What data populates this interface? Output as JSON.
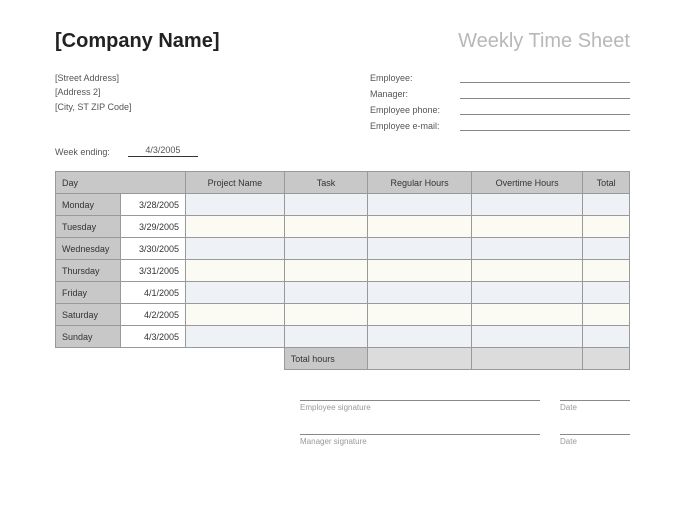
{
  "header": {
    "company_name": "[Company Name]",
    "doc_title": "Weekly Time Sheet"
  },
  "address": {
    "line1": "[Street Address]",
    "line2": "[Address 2]",
    "line3": "[City, ST  ZIP Code]"
  },
  "employee_fields": {
    "employee": "Employee:",
    "manager": "Manager:",
    "phone": "Employee phone:",
    "email": "Employee e-mail:"
  },
  "week_ending": {
    "label": "Week ending:",
    "value": "4/3/2005"
  },
  "table": {
    "type": "table",
    "columns": [
      "Day",
      "Project Name",
      "Task",
      "Regular Hours",
      "Overtime Hours",
      "Total"
    ],
    "rows": [
      {
        "day": "Monday",
        "date": "3/28/2005"
      },
      {
        "day": "Tuesday",
        "date": "3/29/2005"
      },
      {
        "day": "Wednesday",
        "date": "3/30/2005"
      },
      {
        "day": "Thursday",
        "date": "3/31/2005"
      },
      {
        "day": "Friday",
        "date": "4/1/2005"
      },
      {
        "day": "Saturday",
        "date": "4/2/2005"
      },
      {
        "day": "Sunday",
        "date": "4/3/2005"
      }
    ],
    "totals_label": "Total hours",
    "header_bg": "#c8c8c8",
    "alt_bg_a": "#eef2f7",
    "alt_bg_b": "#fbfbf3",
    "totals_bg": "#dcdcdc",
    "border_color": "#999999"
  },
  "signatures": {
    "employee": "Employee signature",
    "manager": "Manager signature",
    "date": "Date"
  }
}
